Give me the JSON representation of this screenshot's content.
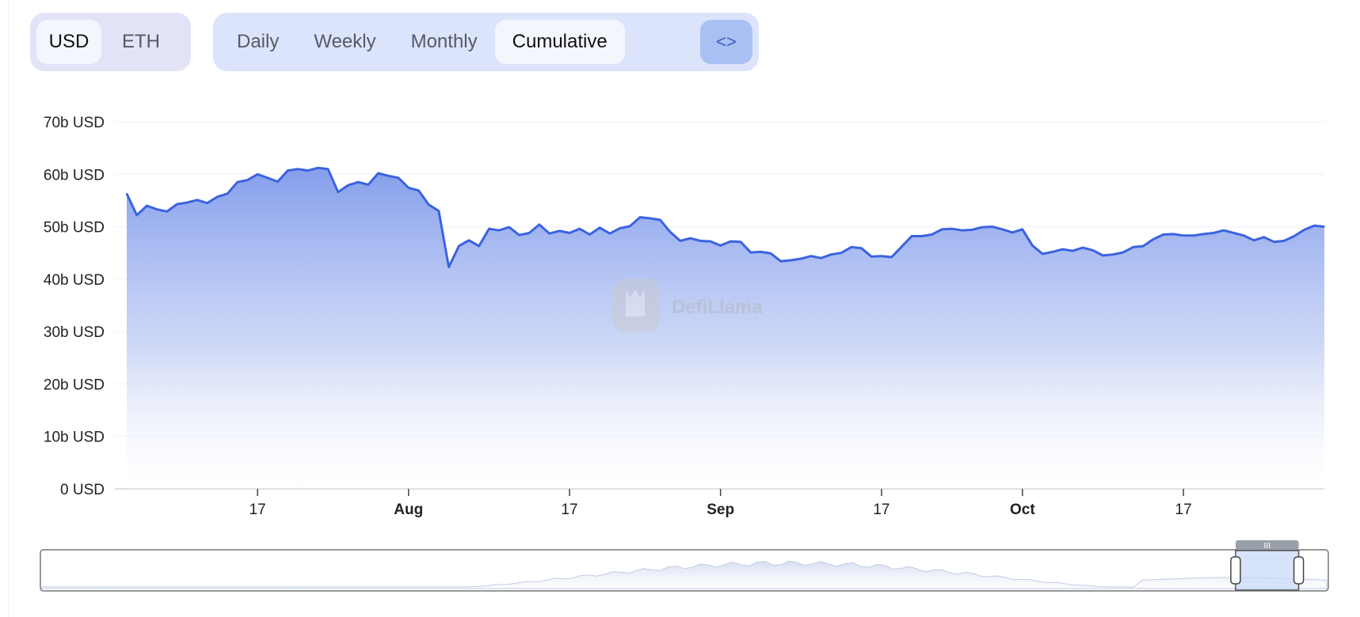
{
  "controls": {
    "units": [
      {
        "label": "USD",
        "active": true
      },
      {
        "label": "ETH",
        "active": false
      }
    ],
    "periods": [
      {
        "label": "Daily",
        "active": false
      },
      {
        "label": "Weekly",
        "active": false
      },
      {
        "label": "Monthly",
        "active": false
      },
      {
        "label": "Cumulative",
        "active": true
      }
    ],
    "embed_label": "<>",
    "embed_icon": "code-embed-icon"
  },
  "watermark": {
    "text": "DefiLlama",
    "icon": "llama-logo-icon"
  },
  "colors": {
    "line": "#3b63e0",
    "fill_top": "#7e99ea",
    "grid": "#eef0f4",
    "active_bg": "#f4f6fe",
    "group_bg": "#dbe4fb"
  },
  "chart_data": {
    "type": "area",
    "title": "",
    "xlabel": "",
    "ylabel": "",
    "y_unit": "b USD",
    "ylim": [
      0,
      70
    ],
    "y_ticks": [
      "0 USD",
      "10b USD",
      "20b USD",
      "30b USD",
      "40b USD",
      "50b USD",
      "60b USD",
      "70b USD"
    ],
    "x_ticks": [
      {
        "label": "17",
        "date": "2024-07-17",
        "bold": false
      },
      {
        "label": "Aug",
        "date": "2024-08-01",
        "bold": true
      },
      {
        "label": "17",
        "date": "2024-08-17",
        "bold": false
      },
      {
        "label": "Sep",
        "date": "2024-09-01",
        "bold": true
      },
      {
        "label": "17",
        "date": "2024-09-17",
        "bold": false
      },
      {
        "label": "Oct",
        "date": "2024-10-01",
        "bold": true
      },
      {
        "label": "17",
        "date": "2024-10-17",
        "bold": false
      }
    ],
    "x_range": [
      "2024-07-04",
      "2024-10-31"
    ],
    "grid": true,
    "series": [
      {
        "values": [
          [
            "2024-07-04",
            56.3
          ],
          [
            "2024-07-05",
            52.2
          ],
          [
            "2024-07-06",
            54.0
          ],
          [
            "2024-07-07",
            53.3
          ],
          [
            "2024-07-08",
            52.9
          ],
          [
            "2024-07-09",
            54.3
          ],
          [
            "2024-07-10",
            54.6
          ],
          [
            "2024-07-11",
            55.1
          ],
          [
            "2024-07-12",
            54.5
          ],
          [
            "2024-07-13",
            55.7
          ],
          [
            "2024-07-14",
            56.3
          ],
          [
            "2024-07-15",
            58.5
          ],
          [
            "2024-07-16",
            58.9
          ],
          [
            "2024-07-17",
            60.0
          ],
          [
            "2024-07-18",
            59.3
          ],
          [
            "2024-07-19",
            58.6
          ],
          [
            "2024-07-20",
            60.7
          ],
          [
            "2024-07-21",
            61.0
          ],
          [
            "2024-07-22",
            60.7
          ],
          [
            "2024-07-23",
            61.2
          ],
          [
            "2024-07-24",
            61.0
          ],
          [
            "2024-07-25",
            56.6
          ],
          [
            "2024-07-26",
            57.9
          ],
          [
            "2024-07-27",
            58.5
          ],
          [
            "2024-07-28",
            58.0
          ],
          [
            "2024-07-29",
            60.2
          ],
          [
            "2024-07-30",
            59.7
          ],
          [
            "2024-07-31",
            59.3
          ],
          [
            "2024-08-01",
            57.4
          ],
          [
            "2024-08-02",
            56.9
          ],
          [
            "2024-08-03",
            54.2
          ],
          [
            "2024-08-04",
            53.0
          ],
          [
            "2024-08-05",
            42.3
          ],
          [
            "2024-08-06",
            46.3
          ],
          [
            "2024-08-07",
            47.4
          ],
          [
            "2024-08-08",
            46.3
          ],
          [
            "2024-08-09",
            49.6
          ],
          [
            "2024-08-10",
            49.3
          ],
          [
            "2024-08-11",
            49.9
          ],
          [
            "2024-08-12",
            48.4
          ],
          [
            "2024-08-13",
            48.8
          ],
          [
            "2024-08-14",
            50.4
          ],
          [
            "2024-08-15",
            48.7
          ],
          [
            "2024-08-16",
            49.2
          ],
          [
            "2024-08-17",
            48.8
          ],
          [
            "2024-08-18",
            49.6
          ],
          [
            "2024-08-19",
            48.5
          ],
          [
            "2024-08-20",
            49.8
          ],
          [
            "2024-08-21",
            48.7
          ],
          [
            "2024-08-22",
            49.7
          ],
          [
            "2024-08-23",
            50.1
          ],
          [
            "2024-08-24",
            51.8
          ],
          [
            "2024-08-25",
            51.6
          ],
          [
            "2024-08-26",
            51.3
          ],
          [
            "2024-08-27",
            49.0
          ],
          [
            "2024-08-28",
            47.3
          ],
          [
            "2024-08-29",
            47.8
          ],
          [
            "2024-08-30",
            47.3
          ],
          [
            "2024-08-31",
            47.2
          ],
          [
            "2024-09-01",
            46.4
          ],
          [
            "2024-09-02",
            47.2
          ],
          [
            "2024-09-03",
            47.1
          ],
          [
            "2024-09-04",
            45.1
          ],
          [
            "2024-09-05",
            45.2
          ],
          [
            "2024-09-06",
            44.9
          ],
          [
            "2024-09-07",
            43.4
          ],
          [
            "2024-09-08",
            43.6
          ],
          [
            "2024-09-09",
            43.9
          ],
          [
            "2024-09-10",
            44.4
          ],
          [
            "2024-09-11",
            44.0
          ],
          [
            "2024-09-12",
            44.7
          ],
          [
            "2024-09-13",
            45.0
          ],
          [
            "2024-09-14",
            46.1
          ],
          [
            "2024-09-15",
            45.9
          ],
          [
            "2024-09-16",
            44.3
          ],
          [
            "2024-09-17",
            44.4
          ],
          [
            "2024-09-18",
            44.2
          ],
          [
            "2024-09-19",
            46.2
          ],
          [
            "2024-09-20",
            48.2
          ],
          [
            "2024-09-21",
            48.2
          ],
          [
            "2024-09-22",
            48.5
          ],
          [
            "2024-09-23",
            49.5
          ],
          [
            "2024-09-24",
            49.6
          ],
          [
            "2024-09-25",
            49.3
          ],
          [
            "2024-09-26",
            49.4
          ],
          [
            "2024-09-27",
            49.9
          ],
          [
            "2024-09-28",
            50.0
          ],
          [
            "2024-09-29",
            49.5
          ],
          [
            "2024-09-30",
            48.9
          ],
          [
            "2024-10-01",
            49.5
          ],
          [
            "2024-10-02",
            46.4
          ],
          [
            "2024-10-03",
            44.8
          ],
          [
            "2024-10-04",
            45.2
          ],
          [
            "2024-10-05",
            45.7
          ],
          [
            "2024-10-06",
            45.4
          ],
          [
            "2024-10-07",
            46.0
          ],
          [
            "2024-10-08",
            45.5
          ],
          [
            "2024-10-09",
            44.5
          ],
          [
            "2024-10-10",
            44.7
          ],
          [
            "2024-10-11",
            45.1
          ],
          [
            "2024-10-12",
            46.1
          ],
          [
            "2024-10-13",
            46.3
          ],
          [
            "2024-10-14",
            47.6
          ],
          [
            "2024-10-15",
            48.5
          ],
          [
            "2024-10-16",
            48.6
          ],
          [
            "2024-10-17",
            48.3
          ],
          [
            "2024-10-18",
            48.3
          ],
          [
            "2024-10-19",
            48.6
          ],
          [
            "2024-10-20",
            48.8
          ],
          [
            "2024-10-21",
            49.3
          ],
          [
            "2024-10-22",
            48.8
          ],
          [
            "2024-10-23",
            48.3
          ],
          [
            "2024-10-24",
            47.4
          ],
          [
            "2024-10-25",
            48.0
          ],
          [
            "2024-10-26",
            47.1
          ],
          [
            "2024-10-27",
            47.3
          ],
          [
            "2024-10-28",
            48.2
          ],
          [
            "2024-10-29",
            49.4
          ],
          [
            "2024-10-30",
            50.2
          ],
          [
            "2024-10-31",
            50.0
          ]
        ]
      }
    ],
    "overview": {
      "selection_start": 0.928,
      "selection_end": 0.977
    }
  }
}
